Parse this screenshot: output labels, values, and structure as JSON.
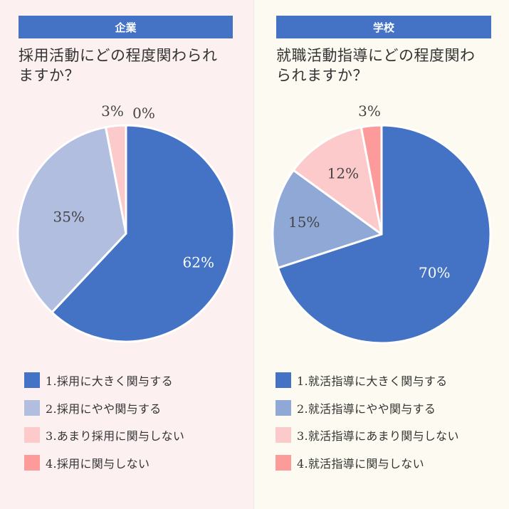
{
  "chart_data": [
    {
      "type": "pie",
      "header": "企業",
      "title": "採用活動にどの程度関わられますか？",
      "title_lines": [
        "採用活動にどの程度関わられ",
        "ますか？"
      ],
      "slices": [
        {
          "label": "1.採用に大きく関与する",
          "value": 62,
          "display": "62%",
          "color": "#4472c4"
        },
        {
          "label": "2.採用にやや関与する",
          "value": 35,
          "display": "35%",
          "color": "#b1bedf"
        },
        {
          "label": "3.あまり採用に関与しない",
          "value": 3,
          "display": "3%",
          "color": "#fdcacb"
        },
        {
          "label": "4.採用に関与しない",
          "value": 0,
          "display": "0%",
          "color": "#fd9b9a"
        }
      ]
    },
    {
      "type": "pie",
      "header": "学校",
      "title": "就職活動指導にどの程度関わられますか？",
      "title_lines": [
        "就職活動指導にどの程度関わ",
        "られますか？"
      ],
      "slices": [
        {
          "label": "1.就活指導に大きく関与する",
          "value": 70,
          "display": "70%",
          "color": "#4472c4"
        },
        {
          "label": "2.就活指導にやや関与する",
          "value": 15,
          "display": "15%",
          "color": "#8fa8d6"
        },
        {
          "label": "3.就活指導にあまり関与しない",
          "value": 12,
          "display": "12%",
          "color": "#fdcacb"
        },
        {
          "label": "4.就活指導に関与しない",
          "value": 3,
          "display": "3%",
          "color": "#fd9b9a"
        }
      ]
    }
  ]
}
